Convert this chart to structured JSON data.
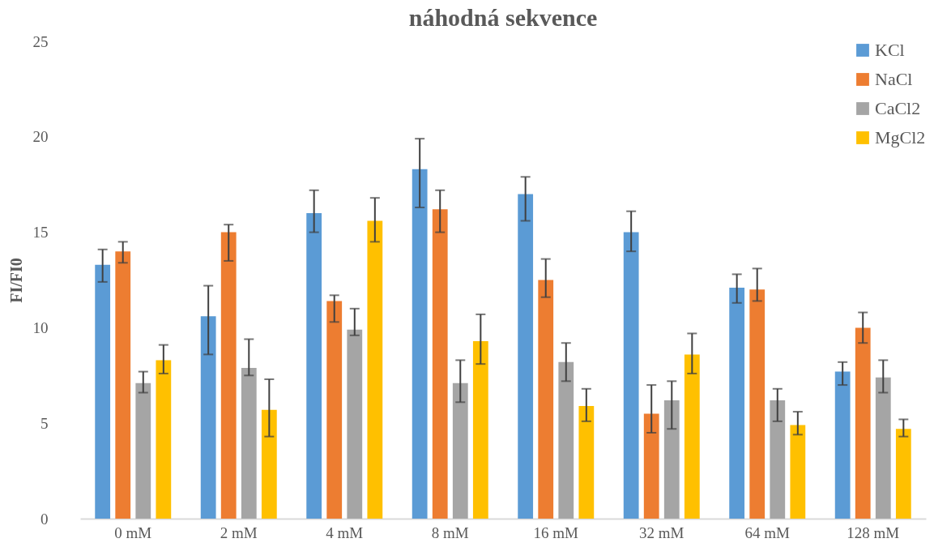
{
  "chart_data": {
    "type": "bar",
    "title": "náhodná sekvence",
    "ylabel": "FI/FI0",
    "categories": [
      "0 mM",
      "2 mM",
      "4 mM",
      "8 mM",
      "16 mM",
      "32 mM",
      "64 mM",
      "128 mM"
    ],
    "series": [
      {
        "name": "KCl",
        "color": "#5b9bd5",
        "values": [
          13.3,
          10.6,
          16.0,
          18.3,
          17.0,
          15.0,
          12.1,
          7.7
        ],
        "errors": [
          [
            12.4,
            14.1
          ],
          [
            8.6,
            12.2
          ],
          [
            15.0,
            17.2
          ],
          [
            16.3,
            19.9
          ],
          [
            15.6,
            17.9
          ],
          [
            14.0,
            16.1
          ],
          [
            11.3,
            12.8
          ],
          [
            7.0,
            8.2
          ]
        ]
      },
      {
        "name": "NaCl",
        "color": "#ed7d31",
        "values": [
          14.0,
          15.0,
          11.4,
          16.2,
          12.5,
          5.5,
          12.0,
          10.0
        ],
        "errors": [
          [
            13.4,
            14.5
          ],
          [
            13.5,
            15.4
          ],
          [
            10.3,
            11.7
          ],
          [
            15.0,
            17.2
          ],
          [
            11.6,
            13.6
          ],
          [
            4.5,
            7.0
          ],
          [
            11.4,
            13.1
          ],
          [
            9.2,
            10.8
          ]
        ]
      },
      {
        "name": "CaCl2",
        "color": "#a5a5a5",
        "values": [
          7.1,
          7.9,
          9.9,
          7.1,
          8.2,
          6.2,
          6.2,
          7.4
        ],
        "errors": [
          [
            6.6,
            7.7
          ],
          [
            7.5,
            9.4
          ],
          [
            9.6,
            11.0
          ],
          [
            6.1,
            8.3
          ],
          [
            7.2,
            9.2
          ],
          [
            4.7,
            7.2
          ],
          [
            5.1,
            6.8
          ],
          [
            6.6,
            8.3
          ]
        ]
      },
      {
        "name": "MgCl2",
        "color": "#ffc000",
        "values": [
          8.3,
          5.7,
          15.6,
          9.3,
          5.9,
          8.6,
          4.9,
          4.7
        ],
        "errors": [
          [
            7.6,
            9.1
          ],
          [
            4.3,
            7.3
          ],
          [
            14.5,
            16.8
          ],
          [
            8.1,
            10.7
          ],
          [
            5.1,
            6.8
          ],
          [
            7.6,
            9.7
          ],
          [
            4.4,
            5.6
          ],
          [
            4.3,
            5.2
          ]
        ]
      }
    ],
    "ylim": [
      0,
      25
    ],
    "yticks": [
      0,
      5,
      10,
      15,
      20,
      25
    ],
    "legend": "top right"
  }
}
